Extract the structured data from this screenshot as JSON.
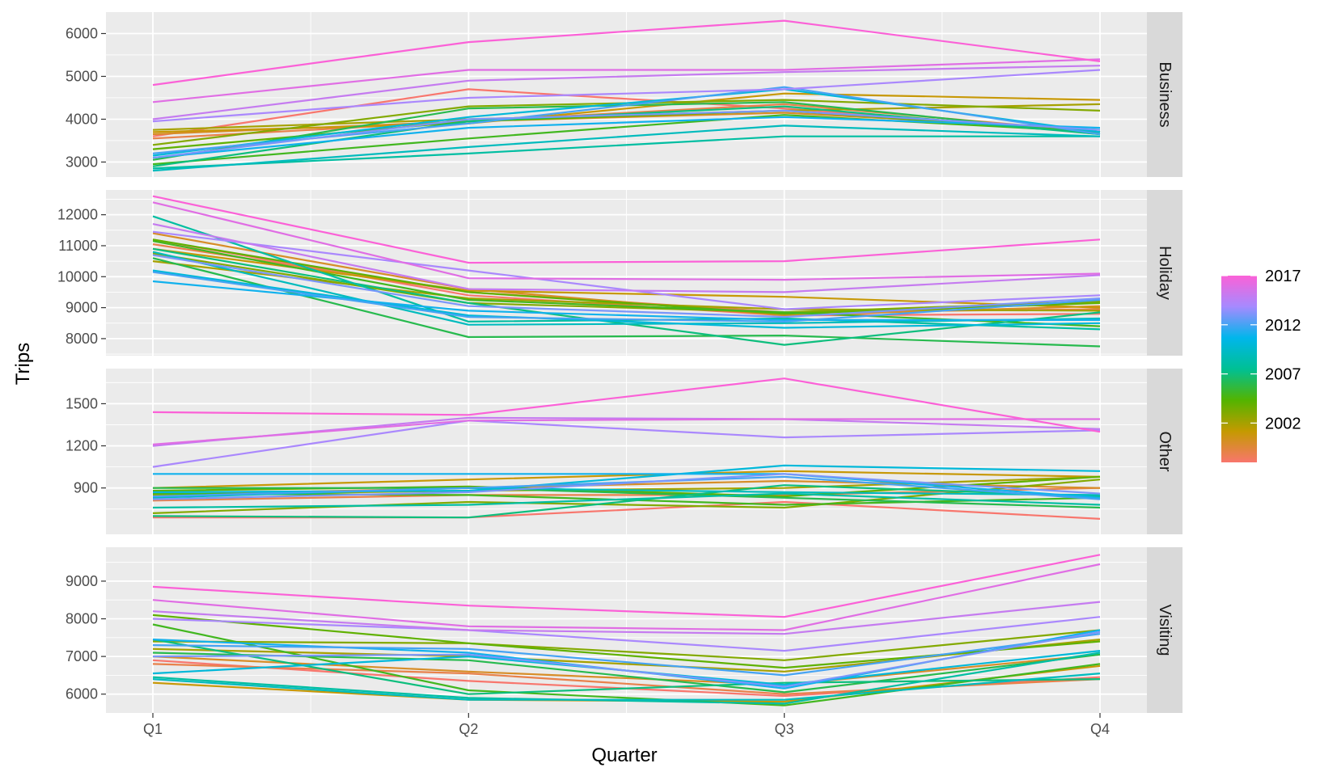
{
  "chart_data": {
    "type": "line",
    "xlabel": "Quarter",
    "ylabel": "Trips",
    "categories": [
      "Q1",
      "Q2",
      "Q3",
      "Q4"
    ],
    "legend": {
      "position": "right",
      "type": "colorbar",
      "range": [
        1998,
        2017
      ],
      "labels": [
        "2017",
        "2012",
        "2007",
        "2002"
      ],
      "gradient": [
        "#F8766D",
        "#C49A00",
        "#53B400",
        "#00C094",
        "#00B6EB",
        "#A58AFF",
        "#FB61D7"
      ]
    },
    "grid": true,
    "facets": [
      {
        "name": "Business",
        "ylim": [
          2650,
          6500
        ],
        "yticks": [
          3000,
          4000,
          5000,
          6000
        ],
        "series": [
          {
            "year": 1998,
            "values": [
              3600,
              4700,
              4250,
              3700
            ]
          },
          {
            "year": 1999,
            "values": [
              3550,
              3950,
              4350,
              3700
            ]
          },
          {
            "year": 2000,
            "values": [
              3650,
              3950,
              4150,
              3750
            ]
          },
          {
            "year": 2001,
            "values": [
              3700,
              3900,
              4600,
              4450
            ]
          },
          {
            "year": 2002,
            "values": [
              3750,
              4000,
              4200,
              4350
            ]
          },
          {
            "year": 2003,
            "values": [
              3400,
              4300,
              4450,
              4200
            ]
          },
          {
            "year": 2004,
            "values": [
              3300,
              3950,
              4200,
              3700
            ]
          },
          {
            "year": 2005,
            "values": [
              2950,
              3550,
              4100,
              3700
            ]
          },
          {
            "year": 2006,
            "values": [
              3050,
              4250,
              4400,
              3650
            ]
          },
          {
            "year": 2007,
            "values": [
              2900,
              3950,
              4300,
              3650
            ]
          },
          {
            "year": 2008,
            "values": [
              2850,
              3200,
              3600,
              3600
            ]
          },
          {
            "year": 2009,
            "values": [
              2800,
              3350,
              3850,
              3600
            ]
          },
          {
            "year": 2010,
            "values": [
              3150,
              4050,
              4700,
              3700
            ]
          },
          {
            "year": 2011,
            "values": [
              3100,
              3800,
              4050,
              3800
            ]
          },
          {
            "year": 2012,
            "values": [
              3200,
              3900,
              4750,
              3650
            ]
          },
          {
            "year": 2013,
            "values": [
              3100,
              4000,
              4200,
              3750
            ]
          },
          {
            "year": 2014,
            "values": [
              3950,
              4500,
              4700,
              5150
            ]
          },
          {
            "year": 2015,
            "values": [
              4000,
              4900,
              5100,
              5250
            ]
          },
          {
            "year": 2016,
            "values": [
              4400,
              5150,
              5150,
              5400
            ]
          },
          {
            "year": 2017,
            "values": [
              4800,
              5800,
              6300,
              5350
            ]
          }
        ]
      },
      {
        "name": "Holiday",
        "ylim": [
          7450,
          12800
        ],
        "yticks": [
          8000,
          9000,
          10000,
          11000,
          12000
        ],
        "series": [
          {
            "year": 1998,
            "values": [
              11200,
              9400,
              8750,
              8800
            ]
          },
          {
            "year": 1999,
            "values": [
              11050,
              9500,
              8850,
              8950
            ]
          },
          {
            "year": 2000,
            "values": [
              11400,
              9600,
              8750,
              9050
            ]
          },
          {
            "year": 2001,
            "values": [
              10900,
              9550,
              9350,
              9000
            ]
          },
          {
            "year": 2002,
            "values": [
              10500,
              9300,
              8950,
              8900
            ]
          },
          {
            "year": 2003,
            "values": [
              10750,
              9150,
              8850,
              9200
            ]
          },
          {
            "year": 2004,
            "values": [
              11200,
              9500,
              8800,
              9150
            ]
          },
          {
            "year": 2005,
            "values": [
              11150,
              9250,
              8850,
              8400
            ]
          },
          {
            "year": 2006,
            "values": [
              10600,
              8050,
              8100,
              7750
            ]
          },
          {
            "year": 2007,
            "values": [
              10900,
              9150,
              7800,
              8850
            ]
          },
          {
            "year": 2008,
            "values": [
              11950,
              8550,
              8650,
              8300
            ]
          },
          {
            "year": 2009,
            "values": [
              10800,
              8450,
              8500,
              8650
            ]
          },
          {
            "year": 2010,
            "values": [
              10200,
              8750,
              8350,
              8500
            ]
          },
          {
            "year": 2011,
            "values": [
              9850,
              8900,
              8600,
              8600
            ]
          },
          {
            "year": 2012,
            "values": [
              10150,
              8700,
              8550,
              9250
            ]
          },
          {
            "year": 2013,
            "values": [
              10700,
              9050,
              8700,
              9300
            ]
          },
          {
            "year": 2014,
            "values": [
              11450,
              10200,
              8950,
              9400
            ]
          },
          {
            "year": 2015,
            "values": [
              11700,
              9600,
              9500,
              10050
            ]
          },
          {
            "year": 2016,
            "values": [
              12400,
              9950,
              9900,
              10100
            ]
          },
          {
            "year": 2017,
            "values": [
              12600,
              10450,
              10500,
              11200
            ]
          }
        ]
      },
      {
        "name": "Other",
        "ylim": [
          570,
          1750
        ],
        "yticks": [
          900,
          1200,
          1500
        ],
        "series": [
          {
            "year": 1998,
            "values": [
              690,
              690,
              800,
              680
            ]
          },
          {
            "year": 1999,
            "values": [
              810,
              850,
              850,
              900
            ]
          },
          {
            "year": 2000,
            "values": [
              850,
              900,
              950,
              900
            ]
          },
          {
            "year": 2001,
            "values": [
              900,
              960,
              1020,
              980
            ]
          },
          {
            "year": 2002,
            "values": [
              850,
              880,
              900,
              980
            ]
          },
          {
            "year": 2003,
            "values": [
              720,
              800,
              760,
              960
            ]
          },
          {
            "year": 2004,
            "values": [
              880,
              910,
              840,
              980
            ]
          },
          {
            "year": 2005,
            "values": [
              860,
              850,
              780,
              830
            ]
          },
          {
            "year": 2006,
            "values": [
              900,
              900,
              830,
              760
            ]
          },
          {
            "year": 2007,
            "values": [
              700,
              690,
              920,
              840
            ]
          },
          {
            "year": 2008,
            "values": [
              760,
              780,
              860,
              780
            ]
          },
          {
            "year": 2009,
            "values": [
              830,
              900,
              870,
              850
            ]
          },
          {
            "year": 2010,
            "values": [
              870,
              880,
              1060,
              1020
            ]
          },
          {
            "year": 2011,
            "values": [
              1000,
              1000,
              1000,
              830
            ]
          },
          {
            "year": 2012,
            "values": [
              840,
              900,
              980,
              820
            ]
          },
          {
            "year": 2013,
            "values": [
              820,
              870,
              1000,
              860
            ]
          },
          {
            "year": 2014,
            "values": [
              1050,
              1380,
              1260,
              1310
            ]
          },
          {
            "year": 2015,
            "values": [
              1200,
              1400,
              1390,
              1320
            ]
          },
          {
            "year": 2016,
            "values": [
              1210,
              1380,
              1390,
              1390
            ]
          },
          {
            "year": 2017,
            "values": [
              1440,
              1420,
              1680,
              1300
            ]
          }
        ]
      },
      {
        "name": "Visiting",
        "ylim": [
          5500,
          9900
        ],
        "yticks": [
          6000,
          7000,
          8000,
          9000
        ],
        "series": [
          {
            "year": 1998,
            "values": [
              6900,
              6350,
              5950,
              6450
            ]
          },
          {
            "year": 1999,
            "values": [
              6800,
              6550,
              6000,
              6400
            ]
          },
          {
            "year": 2000,
            "values": [
              7000,
              6600,
              6250,
              7050
            ]
          },
          {
            "year": 2001,
            "values": [
              6300,
              5850,
              5800,
              6750
            ]
          },
          {
            "year": 2002,
            "values": [
              7200,
              7000,
              6600,
              7450
            ]
          },
          {
            "year": 2003,
            "values": [
              7400,
              7350,
              6900,
              7700
            ]
          },
          {
            "year": 2004,
            "values": [
              8100,
              7350,
              6700,
              7400
            ]
          },
          {
            "year": 2005,
            "values": [
              7850,
              6100,
              5700,
              6800
            ]
          },
          {
            "year": 2006,
            "values": [
              7100,
              6900,
              6050,
              7050
            ]
          },
          {
            "year": 2007,
            "values": [
              7450,
              6000,
              6300,
              6400
            ]
          },
          {
            "year": 2008,
            "values": [
              6450,
              5900,
              5750,
              7100
            ]
          },
          {
            "year": 2009,
            "values": [
              6400,
              5850,
              5850,
              6550
            ]
          },
          {
            "year": 2010,
            "values": [
              6550,
              7000,
              6250,
              7150
            ]
          },
          {
            "year": 2011,
            "values": [
              7450,
              7100,
              6150,
              7700
            ]
          },
          {
            "year": 2012,
            "values": [
              7300,
              7200,
              6500,
              7600
            ]
          },
          {
            "year": 2013,
            "values": [
              7000,
              7050,
              6200,
              7650
            ]
          },
          {
            "year": 2014,
            "values": [
              8000,
              7700,
              7150,
              8050
            ]
          },
          {
            "year": 2015,
            "values": [
              8200,
              7700,
              7600,
              8450
            ]
          },
          {
            "year": 2016,
            "values": [
              8500,
              7800,
              7700,
              9450
            ]
          },
          {
            "year": 2017,
            "values": [
              8850,
              8350,
              8050,
              9700
            ]
          }
        ]
      }
    ]
  }
}
